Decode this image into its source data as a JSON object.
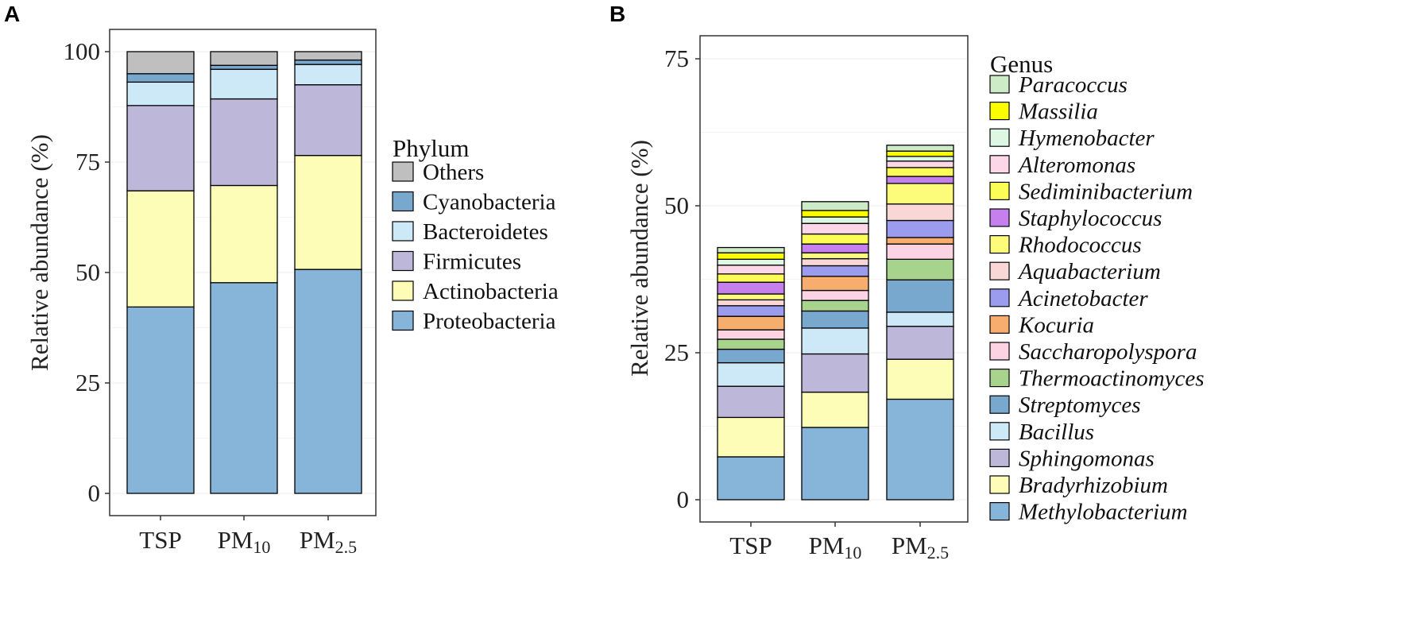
{
  "chart_data": [
    {
      "panel_label": "A",
      "type": "bar",
      "stacked": true,
      "categories": [
        {
          "main": "TSP",
          "sub": ""
        },
        {
          "main": "PM",
          "sub": "10"
        },
        {
          "main": "PM",
          "sub": "2.5"
        }
      ],
      "ylabel": "Relative abundance (%)",
      "ylim": [
        0,
        100
      ],
      "yticks": [
        0,
        25,
        50,
        75,
        100
      ],
      "legend_title": "Phylum",
      "legend_italic": false,
      "series": [
        {
          "name": "Proteobacteria",
          "color": "#86B5D9",
          "values": [
            42.2,
            47.7,
            50.7
          ]
        },
        {
          "name": "Actinobacteria",
          "color": "#FEFDB8",
          "values": [
            26.3,
            22.0,
            25.8
          ]
        },
        {
          "name": "Firmicutes",
          "color": "#BDB8D9",
          "values": [
            19.3,
            19.6,
            16.0
          ]
        },
        {
          "name": "Bacteroidetes",
          "color": "#CDE9F8",
          "values": [
            5.3,
            6.7,
            4.6
          ]
        },
        {
          "name": "Cyanobacteria",
          "color": "#78A8CE",
          "values": [
            1.9,
            0.9,
            1.0
          ]
        },
        {
          "name": "Others",
          "color": "#BFBFBF",
          "values": [
            5.0,
            3.1,
            1.9
          ]
        }
      ]
    },
    {
      "panel_label": "B",
      "type": "bar",
      "stacked": true,
      "categories": [
        {
          "main": "TSP",
          "sub": ""
        },
        {
          "main": "PM",
          "sub": "10"
        },
        {
          "main": "PM",
          "sub": "2.5"
        }
      ],
      "ylabel": "Relative abundance (%)",
      "ylim": [
        0,
        75
      ],
      "yticks": [
        0,
        25,
        50,
        75
      ],
      "legend_title": "Genus",
      "legend_italic": true,
      "series": [
        {
          "name": "Methylobacterium",
          "color": "#86B5D9",
          "values": [
            7.3,
            12.3,
            17.1
          ]
        },
        {
          "name": "Bradyrhizobium",
          "color": "#FEFDB8",
          "values": [
            6.7,
            6.0,
            6.8
          ]
        },
        {
          "name": "Sphingomonas",
          "color": "#BDB8D9",
          "values": [
            5.3,
            6.5,
            5.6
          ]
        },
        {
          "name": "Bacillus",
          "color": "#CDE9F8",
          "values": [
            4.0,
            4.4,
            2.4
          ]
        },
        {
          "name": "Streptomyces",
          "color": "#78A8CE",
          "values": [
            2.3,
            2.9,
            5.5
          ]
        },
        {
          "name": "Thermoactinomyces",
          "color": "#A8D38D",
          "values": [
            1.7,
            1.8,
            3.5
          ]
        },
        {
          "name": "Saccharopolyspora",
          "color": "#FBD3E3",
          "values": [
            1.6,
            1.7,
            2.6
          ]
        },
        {
          "name": "Kocuria",
          "color": "#F7AD6D",
          "values": [
            2.3,
            2.4,
            1.1
          ]
        },
        {
          "name": "Acinetobacter",
          "color": "#9C9CEE",
          "values": [
            1.8,
            1.8,
            2.9
          ]
        },
        {
          "name": "Aquabacterium",
          "color": "#FAD7D7",
          "values": [
            1.0,
            1.2,
            2.8
          ]
        },
        {
          "name": "Rhodococcus",
          "color": "#FCFC7A",
          "values": [
            1.0,
            1.0,
            3.5
          ]
        },
        {
          "name": "Staphylococcus",
          "color": "#C680EE",
          "values": [
            2.0,
            1.5,
            1.2
          ]
        },
        {
          "name": "Sediminibacterium",
          "color": "#FCFC56",
          "values": [
            1.4,
            1.7,
            1.5
          ]
        },
        {
          "name": "Alteromonas",
          "color": "#FBD7E8",
          "values": [
            1.5,
            1.8,
            1.1
          ]
        },
        {
          "name": "Hymenobacter",
          "color": "#DDF7E3",
          "values": [
            1.0,
            1.1,
            0.8
          ]
        },
        {
          "name": "Massilia",
          "color": "#FCFC00",
          "values": [
            1.1,
            1.1,
            0.9
          ]
        },
        {
          "name": "Paracoccus",
          "color": "#CDEBC7",
          "values": [
            0.9,
            1.5,
            1.0
          ]
        }
      ]
    }
  ]
}
